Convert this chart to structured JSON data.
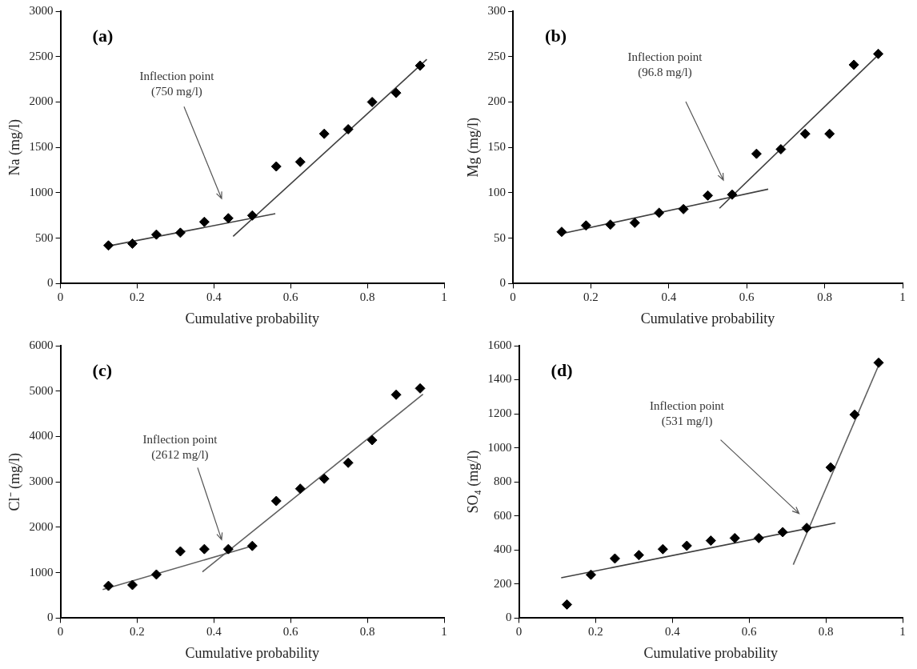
{
  "chart_data": [
    {
      "type": "scatter",
      "title": "(a)",
      "xlabel": "Cumulative probability",
      "ylabel": "Na (mg/l)",
      "xlim": [
        0,
        1
      ],
      "xticks": [
        0,
        0.2,
        0.4,
        0.6,
        0.8,
        1
      ],
      "ylim": [
        0,
        3000
      ],
      "yticks": [
        0,
        500,
        1000,
        1500,
        2000,
        2500,
        3000
      ],
      "grid": false,
      "marker": "diamond",
      "x": [
        0.125,
        0.1875,
        0.25,
        0.3125,
        0.375,
        0.4375,
        0.5,
        0.5625,
        0.625,
        0.6875,
        0.75,
        0.8125,
        0.875,
        0.9375
      ],
      "series": [
        {
          "type": "scatter",
          "color": "#000000",
          "values": [
            420,
            440,
            540,
            560,
            680,
            720,
            750,
            1290,
            1340,
            1650,
            1700,
            2000,
            2100,
            2400
          ]
        },
        {
          "type": "line",
          "color": "#404040",
          "marker": "none",
          "x": [
            0.12,
            0.56
          ],
          "values": [
            410,
            770
          ]
        },
        {
          "type": "line",
          "color": "#404040",
          "marker": "none",
          "x": [
            0.45,
            0.955
          ],
          "values": [
            520,
            2470
          ]
        }
      ],
      "annotations": [
        "Inflection point\n(750 mg/l)"
      ]
    },
    {
      "type": "scatter",
      "title": "(b)",
      "xlabel": "Cumulative probability",
      "ylabel": "Mg (mg/l)",
      "xlim": [
        0,
        1
      ],
      "xticks": [
        0,
        0.2,
        0.4,
        0.6,
        0.8,
        1
      ],
      "ylim": [
        0,
        300
      ],
      "yticks": [
        0,
        50,
        100,
        150,
        200,
        250,
        300
      ],
      "grid": false,
      "marker": "diamond",
      "x": [
        0.125,
        0.1875,
        0.25,
        0.3125,
        0.375,
        0.4375,
        0.5,
        0.5625,
        0.625,
        0.6875,
        0.75,
        0.8125,
        0.875,
        0.9375
      ],
      "series": [
        {
          "type": "scatter",
          "color": "#000000",
          "values": [
            57,
            64,
            65,
            67,
            78,
            82,
            97,
            98,
            143,
            148,
            165,
            165,
            241,
            253
          ]
        },
        {
          "type": "line",
          "color": "#404040",
          "marker": "none",
          "x": [
            0.125,
            0.655
          ],
          "values": [
            55,
            104
          ]
        },
        {
          "type": "line",
          "color": "#404040",
          "marker": "none",
          "x": [
            0.53,
            0.945
          ],
          "values": [
            83,
            255
          ]
        }
      ],
      "annotations": [
        "Inflection point\n(96.8 mg/l)"
      ]
    },
    {
      "type": "scatter",
      "title": "(c)",
      "xlabel": "Cumulative probability",
      "ylabel": "Cl⁻ (mg/l)",
      "xlim": [
        0,
        1
      ],
      "xticks": [
        0,
        0.2,
        0.4,
        0.6,
        0.8,
        1
      ],
      "ylim": [
        0,
        6000
      ],
      "yticks": [
        0,
        1000,
        2000,
        3000,
        4000,
        5000,
        6000
      ],
      "grid": false,
      "marker": "diamond",
      "x": [
        0.125,
        0.1875,
        0.25,
        0.3125,
        0.375,
        0.4375,
        0.5,
        0.5625,
        0.625,
        0.6875,
        0.75,
        0.8125,
        0.875,
        0.9375
      ],
      "series": [
        {
          "type": "scatter",
          "color": "#000000",
          "values": [
            710,
            730,
            960,
            1470,
            1520,
            1520,
            1590,
            2580,
            2850,
            3070,
            3420,
            3920,
            4920,
            5060
          ]
        },
        {
          "type": "line",
          "color": "#606060",
          "marker": "none",
          "x": [
            0.11,
            0.5
          ],
          "values": [
            630,
            1590
          ]
        },
        {
          "type": "line",
          "color": "#606060",
          "marker": "none",
          "x": [
            0.37,
            0.945
          ],
          "values": [
            1020,
            4930
          ]
        }
      ],
      "annotations": [
        "Inflection point\n(2612 mg/l)"
      ]
    },
    {
      "type": "scatter",
      "title": "(d)",
      "xlabel": "Cumulative probability",
      "ylabel": "SO₄ (mg/l)",
      "xlim": [
        0,
        1
      ],
      "xticks": [
        0,
        0.2,
        0.4,
        0.6,
        0.8,
        1
      ],
      "ylim": [
        0,
        1600
      ],
      "yticks": [
        0,
        200,
        400,
        600,
        800,
        1000,
        1200,
        1400,
        1600
      ],
      "grid": false,
      "marker": "diamond",
      "x": [
        0.125,
        0.1875,
        0.25,
        0.3125,
        0.375,
        0.4375,
        0.5,
        0.5625,
        0.625,
        0.6875,
        0.75,
        0.8125,
        0.875,
        0.9375
      ],
      "series": [
        {
          "type": "scatter",
          "color": "#000000",
          "values": [
            80,
            255,
            350,
            370,
            405,
            425,
            455,
            470,
            470,
            505,
            530,
            885,
            1195,
            1500
          ]
        },
        {
          "type": "line",
          "color": "#404040",
          "marker": "none",
          "x": [
            0.11,
            0.825
          ],
          "values": [
            237,
            559
          ]
        },
        {
          "type": "line",
          "color": "#606060",
          "marker": "none",
          "x": [
            0.715,
            0.94
          ],
          "values": [
            314,
            1498
          ]
        }
      ],
      "annotations": [
        "Inflection point\n(531 mg/l)"
      ]
    }
  ]
}
